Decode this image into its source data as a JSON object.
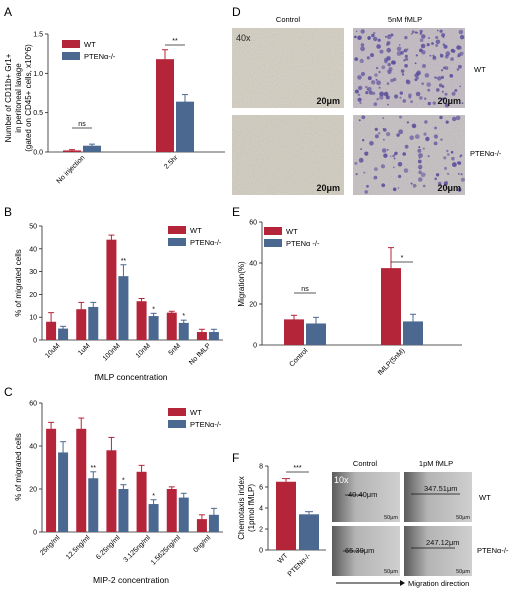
{
  "colors": {
    "wt": "#b5253a",
    "pten": "#4a6890",
    "axis": "#222222",
    "micro_bg": "#d9d6cc",
    "stain": "#5b4f9c",
    "wound_bg": "#c9c9c9"
  },
  "panels": {
    "A": {
      "letter": "A",
      "ylabel_lines": [
        "Number of CD11b+ Gr1+",
        "in peritoneal lavage",
        "(gated on CD45+ cells, x10^6)"
      ],
      "chart_data": {
        "type": "bar",
        "categories": [
          "No injection",
          "2.5hr"
        ],
        "series": [
          {
            "name": "WT",
            "values": [
              0.02,
              1.18
            ],
            "errors": [
              0.01,
              0.12
            ]
          },
          {
            "name": "PTENα-/-",
            "values": [
              0.08,
              0.64
            ],
            "errors": [
              0.02,
              0.09
            ]
          }
        ],
        "ylim": [
          0,
          1.5
        ],
        "yticks": [
          "0.0",
          "0.5",
          "1.0",
          "1.5"
        ],
        "annotations": [
          "ns",
          "**"
        ],
        "legend": "top-left"
      }
    },
    "B": {
      "letter": "B",
      "ylabel": "% of migrated cells",
      "xlabel": "fMLP concentration",
      "chart_data": {
        "type": "bar",
        "categories": [
          "10uM",
          "1uM",
          "100nM",
          "10nM",
          "5nM",
          "No fMLP"
        ],
        "series": [
          {
            "name": "WT",
            "values": [
              8,
              13.5,
              44,
              17,
              12,
              3.5
            ],
            "errors": [
              4,
              3,
              2,
              1.2,
              0.6,
              1.2
            ]
          },
          {
            "name": "PTENα-/-",
            "values": [
              5,
              14.5,
              28,
              10.5,
              7.5,
              3.5
            ],
            "errors": [
              1,
              2,
              5,
              1.2,
              1.2,
              1.2
            ]
          }
        ],
        "ylim": [
          0,
          50
        ],
        "yticks": [
          "0",
          "10",
          "20",
          "30",
          "40",
          "50"
        ],
        "annotations": [
          "**",
          "*",
          "*"
        ],
        "legend": "top-right"
      }
    },
    "C": {
      "letter": "C",
      "ylabel": "% of migrated cells",
      "xlabel": "MIP-2 concentration",
      "chart_data": {
        "type": "bar",
        "categories": [
          "25ng/ml",
          "12.5ng/ml",
          "6.25ng/ml",
          "3.125ng/ml",
          "1.5625ng/ml",
          "0ng/ml"
        ],
        "series": [
          {
            "name": "WT",
            "values": [
              48,
              48,
              38,
              28,
              20,
              6
            ],
            "errors": [
              3,
              5,
              6,
              3,
              1,
              2
            ]
          },
          {
            "name": "PTENα-/-",
            "values": [
              37,
              25,
              20,
              13,
              16,
              8
            ],
            "errors": [
              5,
              3,
              2,
              2,
              2,
              3
            ]
          }
        ],
        "ylim": [
          0,
          60
        ],
        "yticks": [
          "0",
          "20",
          "40",
          "60"
        ],
        "annotations": [
          "**",
          "*",
          "*"
        ],
        "legend": "top-right"
      }
    },
    "D": {
      "letter": "D",
      "col_labels": [
        "Control",
        "5nM fMLP"
      ],
      "row_labels": [
        "WT",
        "PTENα-/-"
      ],
      "magnification": "40x",
      "scale_labels": [
        "20μm",
        "20μm",
        "20μm",
        "20μm"
      ]
    },
    "E": {
      "letter": "E",
      "ylabel": "Migration(%)",
      "chart_data": {
        "type": "bar",
        "categories": [
          "Control",
          "fMLP(5nM)"
        ],
        "series": [
          {
            "name": "WT",
            "values": [
              12.5,
              37.5
            ],
            "errors": [
              2,
              10
            ]
          },
          {
            "name": "PTENα -/-",
            "values": [
              10.5,
              11.5
            ],
            "errors": [
              3,
              3.5
            ]
          }
        ],
        "ylim": [
          0,
          60
        ],
        "yticks": [
          "0",
          "20",
          "40",
          "60"
        ],
        "annotations": [
          "ns",
          "*"
        ],
        "legend": "top-left"
      }
    },
    "F": {
      "letter": "F",
      "ylabel_lines": [
        "Chemotaxis index",
        "(1pmol fMLP)"
      ],
      "chart_data": {
        "type": "bar",
        "categories": [
          "WT",
          "PTENα-/-"
        ],
        "values": [
          6.5,
          3.4
        ],
        "errors": [
          0.3,
          0.25
        ],
        "ylim": [
          0,
          8
        ],
        "yticks": [
          "0",
          "2",
          "4",
          "6",
          "8"
        ],
        "annotations": [
          "***"
        ]
      },
      "micro": {
        "magnification": "10x",
        "col_labels": [
          "Control",
          "1pM fMLP"
        ],
        "row_labels": [
          "WT",
          "PTENα-/-"
        ],
        "measurements": [
          "40.40μm",
          "347.51μm",
          "65.39μm",
          "247.12μm"
        ],
        "scale_labels": [
          "50μm",
          "50μm",
          "50μm",
          "50μm"
        ],
        "direction_label": "Migration direction"
      }
    }
  }
}
